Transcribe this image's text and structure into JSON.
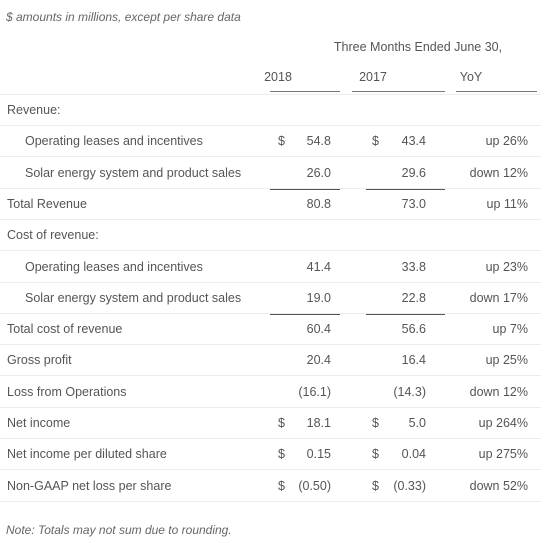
{
  "note_top": "$ amounts in millions, except per share data",
  "period_header": "Three Months Ended June 30,",
  "columns": [
    "2018",
    "2017",
    "YoY"
  ],
  "rows": [
    {
      "label": "Revenue:"
    },
    {
      "label": "Operating leases and incentives",
      "currency_2018": "$",
      "v2018": "54.8",
      "currency_2017": "$",
      "v2017": "43.4",
      "yoy": "up 26%"
    },
    {
      "label": "Solar energy system and product sales",
      "v2018": "26.0",
      "v2017": "29.6",
      "yoy": "down 12%"
    },
    {
      "label": "Total Revenue",
      "v2018": "80.8",
      "v2017": "73.0",
      "yoy": "up 11%"
    },
    {
      "label": "Cost of revenue:"
    },
    {
      "label": "Operating leases and incentives",
      "v2018": "41.4",
      "v2017": "33.8",
      "yoy": "up 23%"
    },
    {
      "label": "Solar energy system and product sales",
      "v2018": "19.0",
      "v2017": "22.8",
      "yoy": "down 17%"
    },
    {
      "label": "Total cost of revenue",
      "v2018": "60.4",
      "v2017": "56.6",
      "yoy": "up 7%"
    },
    {
      "label": "Gross profit",
      "v2018": "20.4",
      "v2017": "16.4",
      "yoy": "up 25%"
    },
    {
      "label": "Loss from Operations",
      "v2018": "(16.1)",
      "v2017": "(14.3)",
      "yoy": "down 12%"
    },
    {
      "label": "Net income",
      "currency_2018": "$",
      "v2018": "18.1",
      "currency_2017": "$",
      "v2017": "5.0",
      "yoy": "up 264%"
    },
    {
      "label": "Net income per diluted share",
      "currency_2018": "$",
      "v2018": "0.15",
      "currency_2017": "$",
      "v2017": "0.04",
      "yoy": "up 275%"
    },
    {
      "label": "Non-GAAP net loss per share",
      "currency_2018": "$",
      "v2018": "(0.50)",
      "currency_2017": "$",
      "v2017": "(0.33)",
      "yoy": "down 52%"
    }
  ],
  "note_bottom": "Note: Totals may not sum due to rounding."
}
